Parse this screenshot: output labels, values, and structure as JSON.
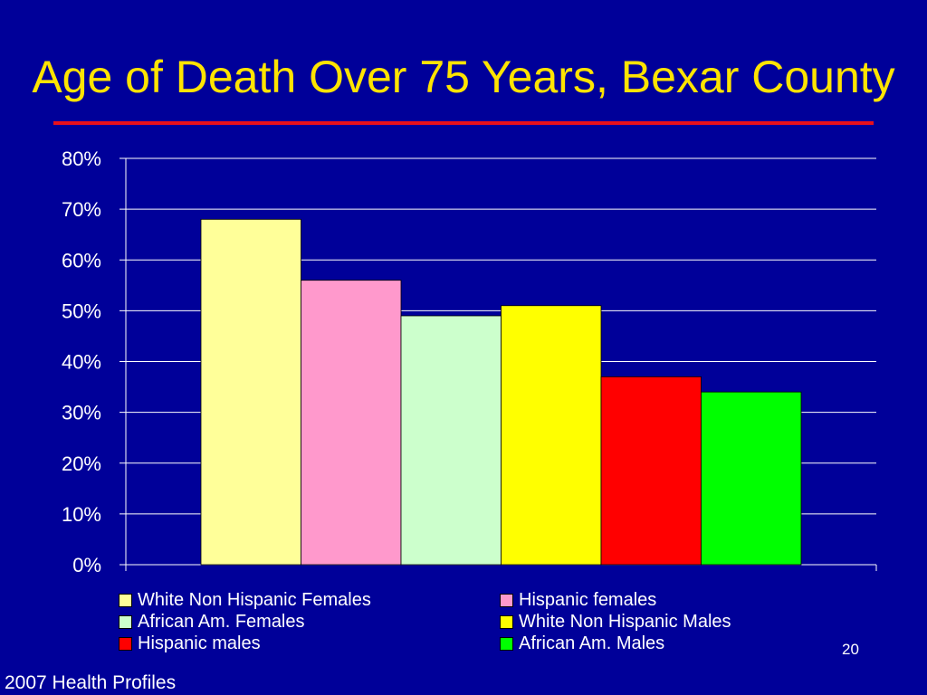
{
  "slide": {
    "title": "Age of Death Over 75 Years, Bexar County",
    "number": "20",
    "footer": "2007 Health Profiles",
    "title_color": "#FFE400",
    "rule_color": "#E8101C",
    "background": "#000099"
  },
  "chart_data": {
    "type": "bar",
    "title": "",
    "xlabel": "",
    "ylabel": "",
    "ylim": [
      0,
      80
    ],
    "yticks": [
      "0%",
      "10%",
      "20%",
      "30%",
      "40%",
      "50%",
      "60%",
      "70%",
      "80%"
    ],
    "grid": true,
    "legend_position": "bottom",
    "series": [
      {
        "name": "White Non Hispanic Females",
        "value": 68,
        "color": "#FFFF99"
      },
      {
        "name": "Hispanic females",
        "value": 56,
        "color": "#FF99CC"
      },
      {
        "name": "African Am. Females",
        "value": 49,
        "color": "#CCFFCC"
      },
      {
        "name": "White Non Hispanic Males",
        "value": 51,
        "color": "#FFFF00"
      },
      {
        "name": "Hispanic males",
        "value": 37,
        "color": "#FF0000"
      },
      {
        "name": "African Am. Males",
        "value": 34,
        "color": "#00FF00"
      }
    ]
  }
}
